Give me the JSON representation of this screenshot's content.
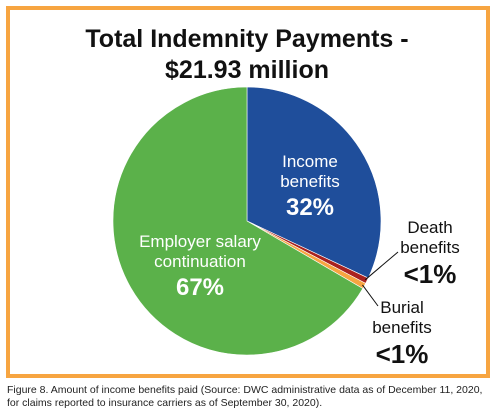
{
  "chart_data": {
    "type": "pie",
    "title_line1": "Total Indemnity Payments -",
    "title_line2": "$21.93 million",
    "slices": [
      {
        "label_line1": "Income",
        "label_line2": "benefits",
        "value_label": "32%",
        "value": 32,
        "color": "#1F4E9B"
      },
      {
        "label_line1": "Death",
        "label_line2": "benefits",
        "value_label": "<1%",
        "value": 0.7,
        "color": "#A8221F"
      },
      {
        "label_line1": "Burial",
        "label_line2": "benefits",
        "value_label": "<1%",
        "value": 0.7,
        "color": "#F7A541"
      },
      {
        "label_line1": "Employer salary",
        "label_line2": "continuation",
        "value_label": "67%",
        "value": 66.6,
        "color": "#5BB14A"
      }
    ],
    "frame_color": "#F7A541"
  },
  "caption": {
    "line1": "Figure 8. Amount of income benefits paid (Source: DWC administrative data as of December 11, 2020,",
    "line2": "for claims reported to insurance carriers as of September 30, 2020)."
  }
}
